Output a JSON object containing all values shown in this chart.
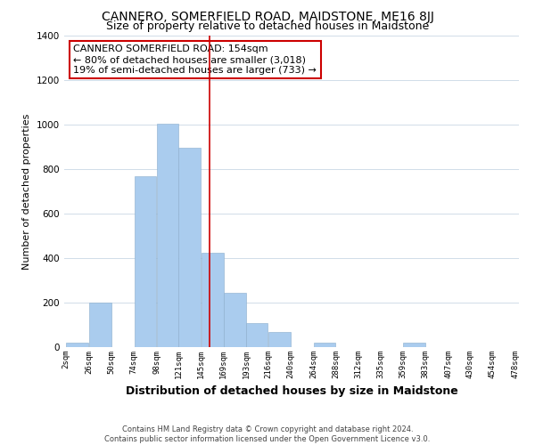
{
  "title": "CANNERO, SOMERFIELD ROAD, MAIDSTONE, ME16 8JJ",
  "subtitle": "Size of property relative to detached houses in Maidstone",
  "xlabel": "Distribution of detached houses by size in Maidstone",
  "ylabel": "Number of detached properties",
  "bar_left_edges": [
    2,
    26,
    50,
    74,
    98,
    121,
    145,
    169,
    193,
    216,
    240,
    264,
    288,
    312,
    335,
    359,
    383,
    407,
    430,
    454
  ],
  "bar_widths": [
    24,
    24,
    24,
    24,
    23,
    24,
    24,
    24,
    23,
    24,
    24,
    24,
    24,
    23,
    24,
    24,
    24,
    23,
    24,
    24
  ],
  "bar_heights": [
    20,
    200,
    0,
    770,
    1005,
    895,
    425,
    245,
    110,
    70,
    0,
    20,
    0,
    0,
    0,
    20,
    0,
    0,
    0,
    0
  ],
  "bar_color": "#aaccee",
  "bar_edge_color": "#8aadcc",
  "vline_x": 154,
  "vline_color": "#cc0000",
  "annotation_text": "CANNERO SOMERFIELD ROAD: 154sqm\n← 80% of detached houses are smaller (3,018)\n19% of semi-detached houses are larger (733) →",
  "annotation_box_edge": "#cc0000",
  "tick_labels": [
    "2sqm",
    "26sqm",
    "50sqm",
    "74sqm",
    "98sqm",
    "121sqm",
    "145sqm",
    "169sqm",
    "193sqm",
    "216sqm",
    "240sqm",
    "264sqm",
    "288sqm",
    "312sqm",
    "335sqm",
    "359sqm",
    "383sqm",
    "407sqm",
    "430sqm",
    "454sqm",
    "478sqm"
  ],
  "ylim": [
    0,
    1400
  ],
  "yticks": [
    0,
    200,
    400,
    600,
    800,
    1000,
    1200,
    1400
  ],
  "grid_color": "#d0dce8",
  "footnote": "Contains HM Land Registry data © Crown copyright and database right 2024.\nContains public sector information licensed under the Open Government Licence v3.0.",
  "bg_color": "#ffffff",
  "title_fontsize": 10,
  "subtitle_fontsize": 9,
  "xlabel_fontsize": 9,
  "ylabel_fontsize": 8,
  "tick_fontsize": 6.5,
  "annotation_fontsize": 8,
  "footnote_fontsize": 6
}
